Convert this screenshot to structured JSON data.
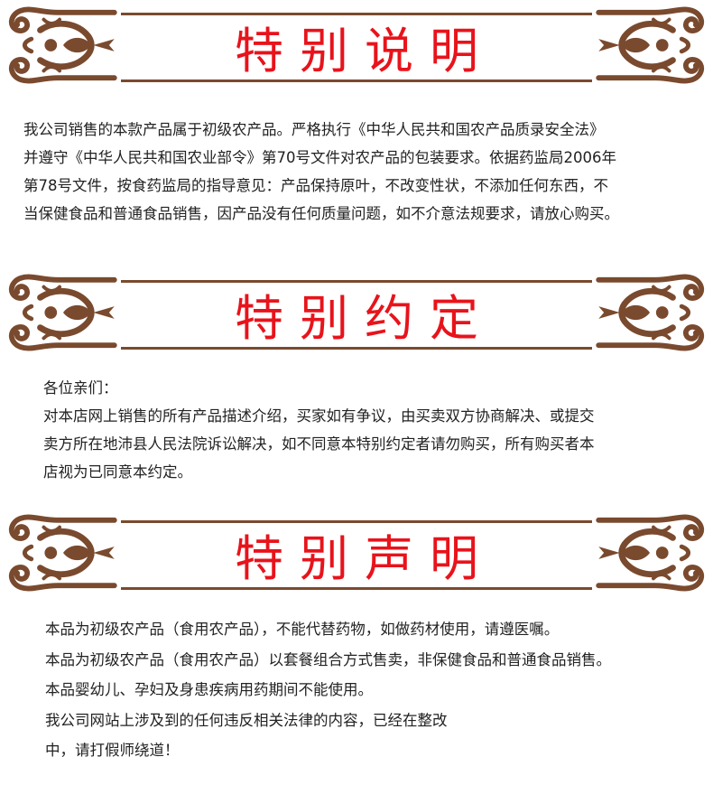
{
  "colors": {
    "title_red": "#e8131b",
    "ornament_brown": "#7a4a2e",
    "text": "#222222"
  },
  "sections": [
    {
      "title": "特别说明",
      "lines": [
        "我公司销售的本款产品属于初级农产品。严格执行《中华人民共和国农产品质录安全法》",
        "并遵守《中华人民共和国农业部令》第70号文件对农产品的包装要求。依据药监局2006年",
        "第78号文件，按食药监局的指导意见：产品保持原叶，不改变性状，不添加任何东西，不",
        "当保健食品和普通食品销售，因产品没有任何质量问题，如不介意法规要求，请放心购买。"
      ]
    },
    {
      "title": "特别约定",
      "lines": [
        "各位亲们：",
        "对本店网上销售的所有产品描述介绍，买家如有争议，由买卖双方协商解决、或提交",
        "卖方所在地沛县人民法院诉讼解决，如不同意本特别约定者请勿购买，所有购买者本",
        "店视为已同意本约定。"
      ]
    },
    {
      "title": "特别声明",
      "lines": [
        "本品为初级农产品（食用农产品），不能代替药物，如做药材使用，请遵医嘱。",
        "本品为初级农产品（食用农产品）以套餐组合方式售卖，非保健食品和普通食品销售。",
        "本品婴幼儿、孕妇及身患疾病用药期间不能使用。",
        "我公司网站上涉及到的任何违反相关法律的内容，已经在整改",
        "中，请打假师绕道！"
      ]
    }
  ]
}
